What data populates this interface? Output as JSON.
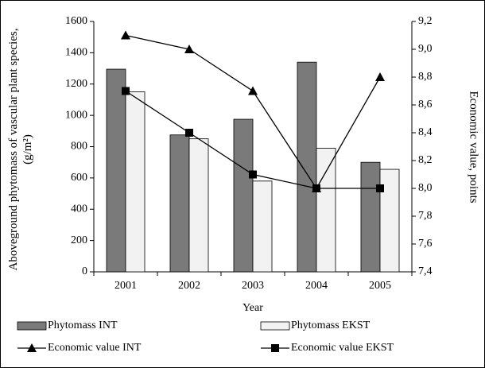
{
  "chart_data": {
    "type": "bar",
    "x_label": "Year",
    "y_label": "Aboveground phytomass of vascular plant species, (g/m²)",
    "y2_label": "Economic value, points",
    "categories": [
      "2001",
      "2002",
      "2003",
      "2004",
      "2005"
    ],
    "series": [
      {
        "name": "Phytomass INT",
        "type": "bar",
        "color": "#7a7a7a",
        "values": [
          1295,
          875,
          975,
          1340,
          700
        ]
      },
      {
        "name": "Phytomass EKST",
        "type": "bar",
        "color": "#f2f2f2",
        "values": [
          1150,
          850,
          580,
          790,
          655
        ]
      },
      {
        "name": "Economic value INT",
        "type": "line",
        "axis": "y2",
        "marker": "triangle",
        "color": "#000000",
        "values": [
          9.1,
          9.0,
          8.7,
          8.0,
          8.8
        ]
      },
      {
        "name": "Economic value EKST",
        "type": "line",
        "axis": "y2",
        "marker": "square",
        "color": "#000000",
        "values": [
          8.7,
          8.4,
          8.1,
          8.0,
          8.0
        ]
      }
    ],
    "ylim": [
      0,
      1600
    ],
    "yticks": [
      0,
      200,
      400,
      600,
      800,
      1000,
      1200,
      1400,
      1600
    ],
    "y2lim": [
      7.4,
      9.2
    ],
    "y2ticks": [
      {
        "value": 7.4,
        "label": "7,4"
      },
      {
        "value": 7.6,
        "label": "7,6"
      },
      {
        "value": 7.8,
        "label": "7,8"
      },
      {
        "value": 8.0,
        "label": "8,0"
      },
      {
        "value": 8.2,
        "label": "8,2"
      },
      {
        "value": 8.4,
        "label": "8,4"
      },
      {
        "value": 8.6,
        "label": "8,6"
      },
      {
        "value": 8.8,
        "label": "8,8"
      },
      {
        "value": 9.0,
        "label": "9,0"
      },
      {
        "value": 9.2,
        "label": "9,2"
      }
    ],
    "grid": false
  }
}
